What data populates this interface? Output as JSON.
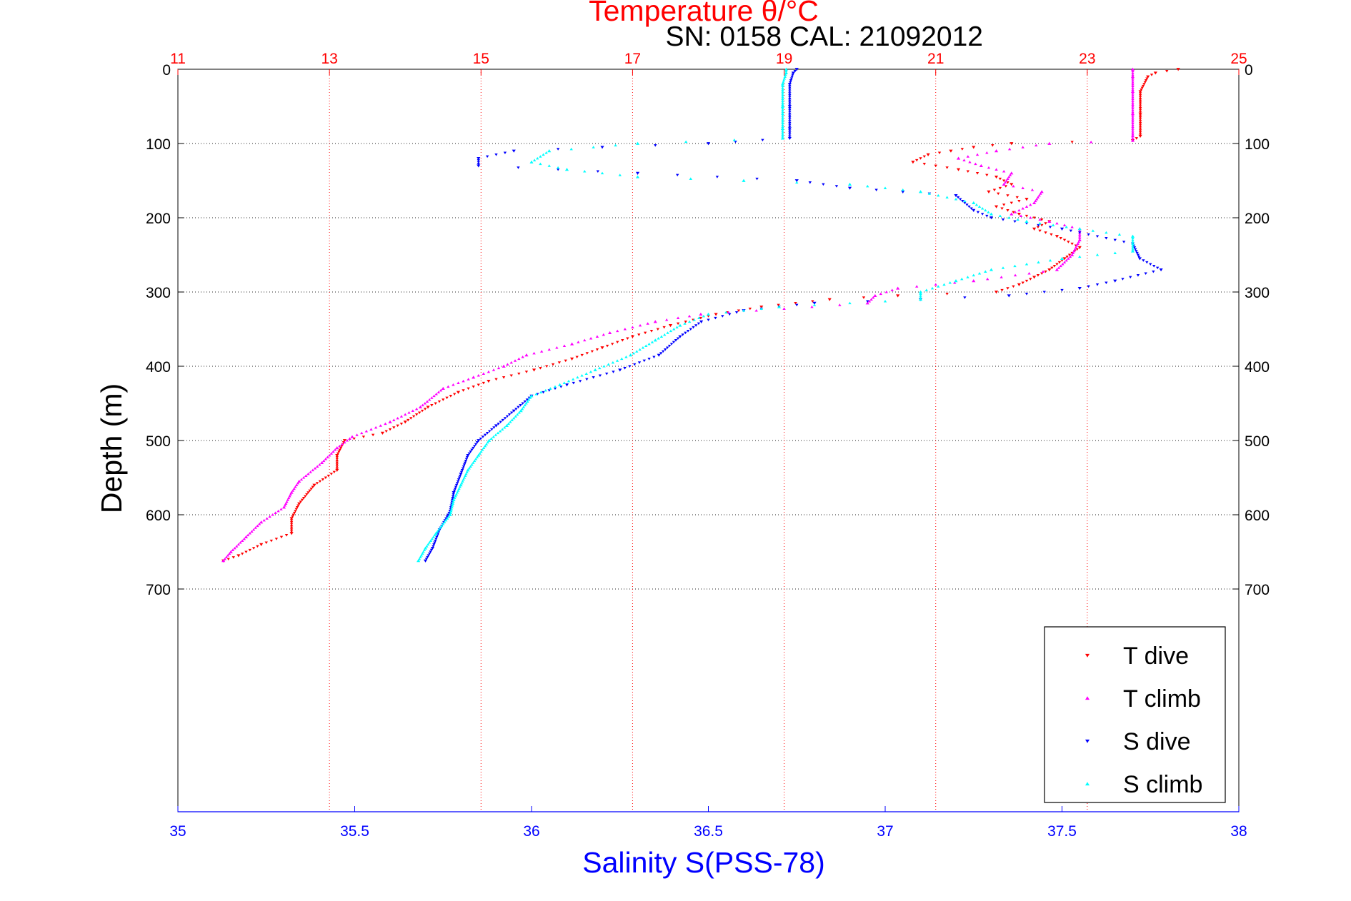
{
  "chart_data": {
    "type": "scatter",
    "title": "Temperature θ/°C",
    "subtitle": "SN: 0158  CAL: 21092012",
    "ylabel": "Depth (m)",
    "xlabel_bottom": "Salinity S(PSS-78)",
    "xlabel_top": "Temperature θ/°C",
    "ylim": [
      0,
      1000
    ],
    "y_inverted": true,
    "y_ticks": [
      0,
      100,
      200,
      300,
      400,
      500,
      600,
      700
    ],
    "x_bottom_lim": [
      35,
      38
    ],
    "x_bottom_ticks": [
      35,
      35.5,
      36,
      36.5,
      37,
      37.5,
      38
    ],
    "x_top_lim": [
      11,
      25
    ],
    "x_top_ticks": [
      11,
      13,
      15,
      17,
      19,
      21,
      23,
      25
    ],
    "grid": true,
    "legend_position": "bottom-right",
    "colors": {
      "temperature_axis": "#ff0000",
      "salinity_axis": "#0000ff",
      "grid_y": "#222222",
      "grid_x_temp": "#ff0000",
      "legend_border": "#000000"
    },
    "series": [
      {
        "name": "T dive",
        "axis": "top",
        "marker": "triangle-down",
        "color": "#ff0000",
        "points": [
          [
            24.2,
            0
          ],
          [
            23.9,
            5
          ],
          [
            23.8,
            10
          ],
          [
            23.7,
            30
          ],
          [
            23.7,
            60
          ],
          [
            23.7,
            90
          ],
          [
            23.6,
            96
          ],
          [
            22,
            100
          ],
          [
            21.5,
            105
          ],
          [
            21.2,
            110
          ],
          [
            20.9,
            115
          ],
          [
            20.7,
            125
          ],
          [
            21.3,
            135
          ],
          [
            21.8,
            145
          ],
          [
            22,
            155
          ],
          [
            21.7,
            165
          ],
          [
            22.2,
            175
          ],
          [
            21.8,
            185
          ],
          [
            22.1,
            195
          ],
          [
            22.5,
            205
          ],
          [
            22.3,
            215
          ],
          [
            22.6,
            225
          ],
          [
            22.9,
            240
          ],
          [
            22.7,
            255
          ],
          [
            22.5,
            270
          ],
          [
            22.3,
            280
          ],
          [
            22.1,
            290
          ],
          [
            21.8,
            300
          ],
          [
            20.5,
            305
          ],
          [
            19.6,
            310
          ],
          [
            18.7,
            320
          ],
          [
            18.1,
            330
          ],
          [
            17.5,
            345
          ],
          [
            17,
            360
          ],
          [
            16.6,
            375
          ],
          [
            16.2,
            390
          ],
          [
            15.7,
            405
          ],
          [
            15.1,
            420
          ],
          [
            14.7,
            435
          ],
          [
            14.3,
            455
          ],
          [
            14,
            475
          ],
          [
            13.7,
            490
          ],
          [
            13.2,
            500
          ],
          [
            13.1,
            520
          ],
          [
            13.1,
            540
          ],
          [
            12.8,
            560
          ],
          [
            12.6,
            585
          ],
          [
            12.5,
            605
          ],
          [
            12.5,
            625
          ],
          [
            12.1,
            640
          ],
          [
            11.8,
            655
          ],
          [
            11.6,
            662
          ]
        ]
      },
      {
        "name": "T climb",
        "axis": "top",
        "marker": "triangle-up",
        "color": "#ff00ff",
        "points": [
          [
            23.6,
            0
          ],
          [
            23.6,
            10
          ],
          [
            23.6,
            30
          ],
          [
            23.6,
            60
          ],
          [
            23.6,
            90
          ],
          [
            23.6,
            96
          ],
          [
            22.5,
            100
          ],
          [
            21.8,
            110
          ],
          [
            21.3,
            120
          ],
          [
            21.6,
            130
          ],
          [
            22,
            140
          ],
          [
            21.9,
            155
          ],
          [
            22.4,
            165
          ],
          [
            22.3,
            180
          ],
          [
            22,
            195
          ],
          [
            22.5,
            205
          ],
          [
            22.9,
            215
          ],
          [
            22.9,
            230
          ],
          [
            22.8,
            250
          ],
          [
            22.6,
            270
          ],
          [
            21.5,
            285
          ],
          [
            20.5,
            295
          ],
          [
            20.2,
            305
          ],
          [
            20.1,
            315
          ],
          [
            17.9,
            330
          ],
          [
            17.3,
            340
          ],
          [
            16.7,
            355
          ],
          [
            16.2,
            370
          ],
          [
            15.6,
            385
          ],
          [
            15.3,
            400
          ],
          [
            14.9,
            415
          ],
          [
            14.5,
            430
          ],
          [
            14.2,
            455
          ],
          [
            13.8,
            475
          ],
          [
            13.3,
            495
          ],
          [
            13.1,
            510
          ],
          [
            12.9,
            530
          ],
          [
            12.6,
            555
          ],
          [
            12.5,
            570
          ],
          [
            12.4,
            590
          ],
          [
            12.1,
            610
          ],
          [
            11.9,
            630
          ],
          [
            11.7,
            650
          ],
          [
            11.6,
            662
          ]
        ]
      },
      {
        "name": "S dive",
        "axis": "bottom",
        "marker": "triangle-down",
        "color": "#0000ff",
        "points": [
          [
            36.75,
            0
          ],
          [
            36.74,
            5
          ],
          [
            36.73,
            20
          ],
          [
            36.73,
            50
          ],
          [
            36.73,
            80
          ],
          [
            36.73,
            93
          ],
          [
            36.5,
            100
          ],
          [
            36.2,
            105
          ],
          [
            35.95,
            110
          ],
          [
            35.85,
            120
          ],
          [
            35.85,
            130
          ],
          [
            36.3,
            140
          ],
          [
            36.75,
            150
          ],
          [
            36.9,
            160
          ],
          [
            37.05,
            165
          ],
          [
            37.2,
            170
          ],
          [
            37.25,
            190
          ],
          [
            37.3,
            200
          ],
          [
            37.5,
            215
          ],
          [
            37.7,
            235
          ],
          [
            37.72,
            255
          ],
          [
            37.78,
            270
          ],
          [
            37.65,
            285
          ],
          [
            37.55,
            295
          ],
          [
            37.35,
            305
          ],
          [
            37.1,
            310
          ],
          [
            36.8,
            315
          ],
          [
            36.6,
            325
          ],
          [
            36.48,
            340
          ],
          [
            36.42,
            360
          ],
          [
            36.36,
            385
          ],
          [
            36.25,
            405
          ],
          [
            36.1,
            425
          ],
          [
            36,
            440
          ],
          [
            35.95,
            460
          ],
          [
            35.9,
            480
          ],
          [
            35.85,
            500
          ],
          [
            35.82,
            520
          ],
          [
            35.8,
            545
          ],
          [
            35.78,
            570
          ],
          [
            35.77,
            595
          ],
          [
            35.74,
            620
          ],
          [
            35.72,
            645
          ],
          [
            35.7,
            662
          ]
        ]
      },
      {
        "name": "S climb",
        "axis": "bottom",
        "marker": "triangle-up",
        "color": "#00ffff",
        "points": [
          [
            36.72,
            0
          ],
          [
            36.72,
            5
          ],
          [
            36.71,
            20
          ],
          [
            36.71,
            50
          ],
          [
            36.71,
            80
          ],
          [
            36.71,
            93
          ],
          [
            36.3,
            100
          ],
          [
            36.05,
            110
          ],
          [
            36,
            125
          ],
          [
            36.1,
            135
          ],
          [
            36.3,
            145
          ],
          [
            36.6,
            150
          ],
          [
            36.9,
            155
          ],
          [
            37.1,
            165
          ],
          [
            37.25,
            180
          ],
          [
            37.3,
            195
          ],
          [
            37.4,
            205
          ],
          [
            37.55,
            215
          ],
          [
            37.7,
            225
          ],
          [
            37.7,
            245
          ],
          [
            37.5,
            255
          ],
          [
            37.3,
            270
          ],
          [
            37.2,
            285
          ],
          [
            37.1,
            300
          ],
          [
            37.1,
            310
          ],
          [
            36.7,
            320
          ],
          [
            36.5,
            330
          ],
          [
            36.42,
            345
          ],
          [
            36.35,
            365
          ],
          [
            36.28,
            385
          ],
          [
            36.18,
            405
          ],
          [
            36.08,
            425
          ],
          [
            36,
            440
          ],
          [
            35.97,
            460
          ],
          [
            35.93,
            480
          ],
          [
            35.88,
            500
          ],
          [
            35.85,
            520
          ],
          [
            35.82,
            540
          ],
          [
            35.8,
            560
          ],
          [
            35.78,
            580
          ],
          [
            35.77,
            600
          ],
          [
            35.73,
            625
          ],
          [
            35.7,
            645
          ],
          [
            35.68,
            662
          ]
        ]
      }
    ],
    "legend": [
      {
        "label": "T dive",
        "color": "#ff0000",
        "marker": "triangle-down"
      },
      {
        "label": "T climb",
        "color": "#ff00ff",
        "marker": "triangle-up"
      },
      {
        "label": "S dive",
        "color": "#0000ff",
        "marker": "triangle-down"
      },
      {
        "label": "S climb",
        "color": "#00ffff",
        "marker": "triangle-up"
      }
    ]
  }
}
